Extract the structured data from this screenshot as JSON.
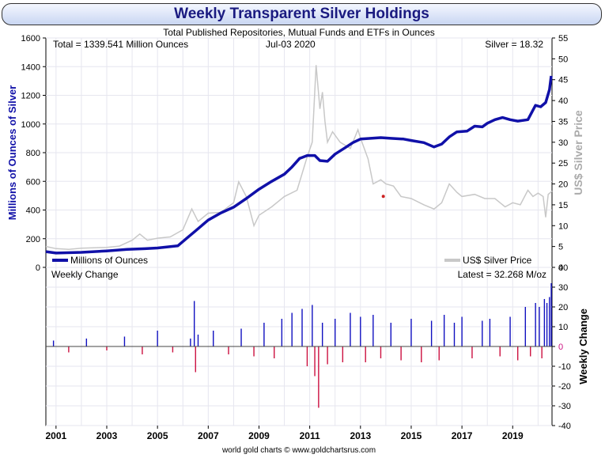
{
  "chart_data": [
    {
      "type": "line",
      "title": "Weekly Transparent Silver Holdings",
      "subtitle": "Total Published Repositories, Mutual Funds and ETFs in Ounces",
      "info_left": "Total = 1339.541 Million Ounces",
      "info_center": "Jul-03  2020",
      "info_right": "Silver = 18.32",
      "ylabel": "Millions of Ounces of Silver",
      "y2label": "US$ Silver Price",
      "ylim": [
        0,
        1600
      ],
      "y2lim": [
        0,
        55
      ],
      "yticks": [
        "0",
        "200",
        "400",
        "600",
        "800",
        "1000",
        "1200",
        "1400",
        "1600"
      ],
      "y2ticks": [
        "0",
        "5",
        "10",
        "15",
        "20",
        "25",
        "30",
        "35",
        "40",
        "45",
        "50",
        "55"
      ],
      "xlim": [
        2000.6,
        2020.55
      ],
      "legend_position": "bottom",
      "grid": true,
      "series": [
        {
          "name": "Millions of Ounces",
          "color": "#1010a8",
          "axis": "left",
          "x": [
            2000.6,
            2001.0,
            2002.0,
            2003.0,
            2003.8,
            2004.5,
            2005.0,
            2005.8,
            2006.2,
            2006.5,
            2007.0,
            2007.5,
            2008.0,
            2008.5,
            2009.0,
            2009.5,
            2010.0,
            2010.3,
            2010.6,
            2010.9,
            2011.2,
            2011.4,
            2011.7,
            2012.0,
            2012.4,
            2012.7,
            2013.0,
            2013.4,
            2013.8,
            2014.2,
            2014.7,
            2015.0,
            2015.5,
            2015.9,
            2016.2,
            2016.5,
            2016.8,
            2017.2,
            2017.5,
            2017.8,
            2018.0,
            2018.3,
            2018.6,
            2018.9,
            2019.2,
            2019.6,
            2019.9,
            2020.1,
            2020.3,
            2020.45,
            2020.52
          ],
          "values": [
            110,
            100,
            105,
            115,
            125,
            130,
            135,
            150,
            210,
            255,
            330,
            380,
            420,
            480,
            545,
            600,
            650,
            700,
            760,
            780,
            780,
            745,
            740,
            790,
            835,
            870,
            895,
            900,
            905,
            900,
            895,
            885,
            870,
            840,
            860,
            910,
            945,
            950,
            985,
            980,
            1005,
            1030,
            1045,
            1030,
            1020,
            1030,
            1130,
            1120,
            1150,
            1240,
            1335
          ]
        },
        {
          "name": "US$ Silver Price",
          "color": "#c8c8c8",
          "axis": "right",
          "x": [
            2000.6,
            2001.0,
            2001.5,
            2002.0,
            2002.5,
            2003.0,
            2003.5,
            2004.0,
            2004.3,
            2004.6,
            2005.0,
            2005.5,
            2006.0,
            2006.35,
            2006.6,
            2007.0,
            2007.5,
            2008.0,
            2008.2,
            2008.5,
            2008.8,
            2009.0,
            2009.5,
            2010.0,
            2010.5,
            2010.9,
            2011.1,
            2011.25,
            2011.4,
            2011.5,
            2011.6,
            2011.7,
            2011.9,
            2012.2,
            2012.6,
            2012.9,
            2013.0,
            2013.3,
            2013.5,
            2013.8,
            2014.0,
            2014.3,
            2014.6,
            2015.0,
            2015.5,
            2015.9,
            2016.2,
            2016.5,
            2016.8,
            2017.0,
            2017.5,
            2017.9,
            2018.3,
            2018.7,
            2019.0,
            2019.3,
            2019.6,
            2019.8,
            2020.0,
            2020.2,
            2020.3,
            2020.4,
            2020.5,
            2020.55
          ],
          "values": [
            5.0,
            4.5,
            4.3,
            4.6,
            4.7,
            4.8,
            5.1,
            6.5,
            8.0,
            6.5,
            7.0,
            7.3,
            9.0,
            14.0,
            11.0,
            13.0,
            13.2,
            15.5,
            20.5,
            17.0,
            10.0,
            12.5,
            14.5,
            17.0,
            18.5,
            26.5,
            30.0,
            48.5,
            38.0,
            42.0,
            35.0,
            30.0,
            32.5,
            30.0,
            28.5,
            33.0,
            31.0,
            26.0,
            20.0,
            21.0,
            20.0,
            19.5,
            17.0,
            16.5,
            15.0,
            14.0,
            15.5,
            20.0,
            18.0,
            17.0,
            17.5,
            16.5,
            16.5,
            14.5,
            15.5,
            15.0,
            18.5,
            17.0,
            17.8,
            17.0,
            12.0,
            17.5,
            18.0,
            18.3
          ]
        }
      ],
      "markers": [
        {
          "color": "#cc2222",
          "x": 2013.9,
          "value": 495
        }
      ]
    },
    {
      "type": "bar",
      "label_left": "Weekly Change",
      "label_right": "Latest = 32.268 M/oz",
      "y2label": "Weekly Change",
      "ylim": [
        -40,
        40
      ],
      "yticks": [
        "40",
        "30",
        "20",
        "10",
        "0",
        "-10",
        "-20",
        "-30",
        "-40"
      ],
      "xlim": [
        2000.6,
        2020.55
      ],
      "xticks": [
        "2001",
        "2003",
        "2005",
        "2007",
        "2009",
        "2011",
        "2013",
        "2015",
        "2017",
        "2019"
      ],
      "positive_color": "#1010c0",
      "negative_color": "#cc1040",
      "x": [
        2000.9,
        2001.5,
        2002.2,
        2003.0,
        2003.7,
        2004.4,
        2005.0,
        2005.6,
        2006.3,
        2006.45,
        2006.5,
        2006.6,
        2007.2,
        2007.8,
        2008.3,
        2008.8,
        2009.2,
        2009.6,
        2009.9,
        2010.3,
        2010.7,
        2010.9,
        2011.1,
        2011.2,
        2011.35,
        2011.5,
        2011.7,
        2012.0,
        2012.3,
        2012.6,
        2013.0,
        2013.2,
        2013.5,
        2013.8,
        2014.2,
        2014.6,
        2015.0,
        2015.4,
        2015.8,
        2016.1,
        2016.3,
        2016.7,
        2017.0,
        2017.4,
        2017.8,
        2018.1,
        2018.5,
        2018.9,
        2019.2,
        2019.5,
        2019.7,
        2019.9,
        2020.05,
        2020.15,
        2020.25,
        2020.35,
        2020.45,
        2020.52
      ],
      "values": [
        3,
        -3,
        4,
        -2,
        5,
        -4,
        8,
        -3,
        4,
        23,
        -13,
        6,
        8,
        -4,
        9,
        -5,
        12,
        -6,
        14,
        17,
        19,
        -10,
        21,
        -15,
        -31,
        12,
        -9,
        14,
        -8,
        17,
        15,
        -8,
        16,
        -6,
        12,
        -7,
        14,
        -8,
        13,
        -7,
        16,
        12,
        15,
        -6,
        13,
        14,
        -5,
        15,
        -7,
        20,
        -5,
        22,
        20,
        -6,
        24,
        22,
        25,
        32
      ]
    }
  ],
  "source_label": "world gold charts © www.goldchartsrus.com"
}
